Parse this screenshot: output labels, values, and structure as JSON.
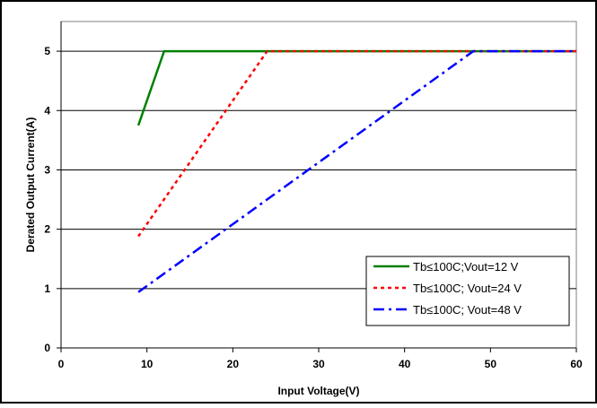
{
  "chart_data": {
    "type": "line",
    "title": "",
    "xlabel": "Input Voltage(V)",
    "ylabel": "Derated Output Current(A)",
    "xlim": [
      0,
      60
    ],
    "ylim": [
      0,
      5.5
    ],
    "xticks": [
      0,
      10,
      20,
      30,
      40,
      50,
      60
    ],
    "yticks": [
      0,
      1,
      2,
      3,
      4,
      5
    ],
    "grid": "horizontal",
    "legend_position": "bottom-right",
    "series": [
      {
        "name": "Tb≤100C;Vout=12 V",
        "color": "#008000",
        "dash": "solid",
        "x": [
          9,
          12,
          60
        ],
        "y": [
          3.75,
          5.0,
          5.0
        ]
      },
      {
        "name": "Tb≤100C; Vout=24 V",
        "color": "#ff0000",
        "dash": "dotted",
        "x": [
          9,
          24,
          60
        ],
        "y": [
          1.88,
          5.0,
          5.0
        ]
      },
      {
        "name": "Tb≤100C; Vout=48 V",
        "color": "#0000ff",
        "dash": "dashdot",
        "x": [
          9,
          48,
          60
        ],
        "y": [
          0.94,
          5.0,
          5.0
        ]
      }
    ]
  }
}
